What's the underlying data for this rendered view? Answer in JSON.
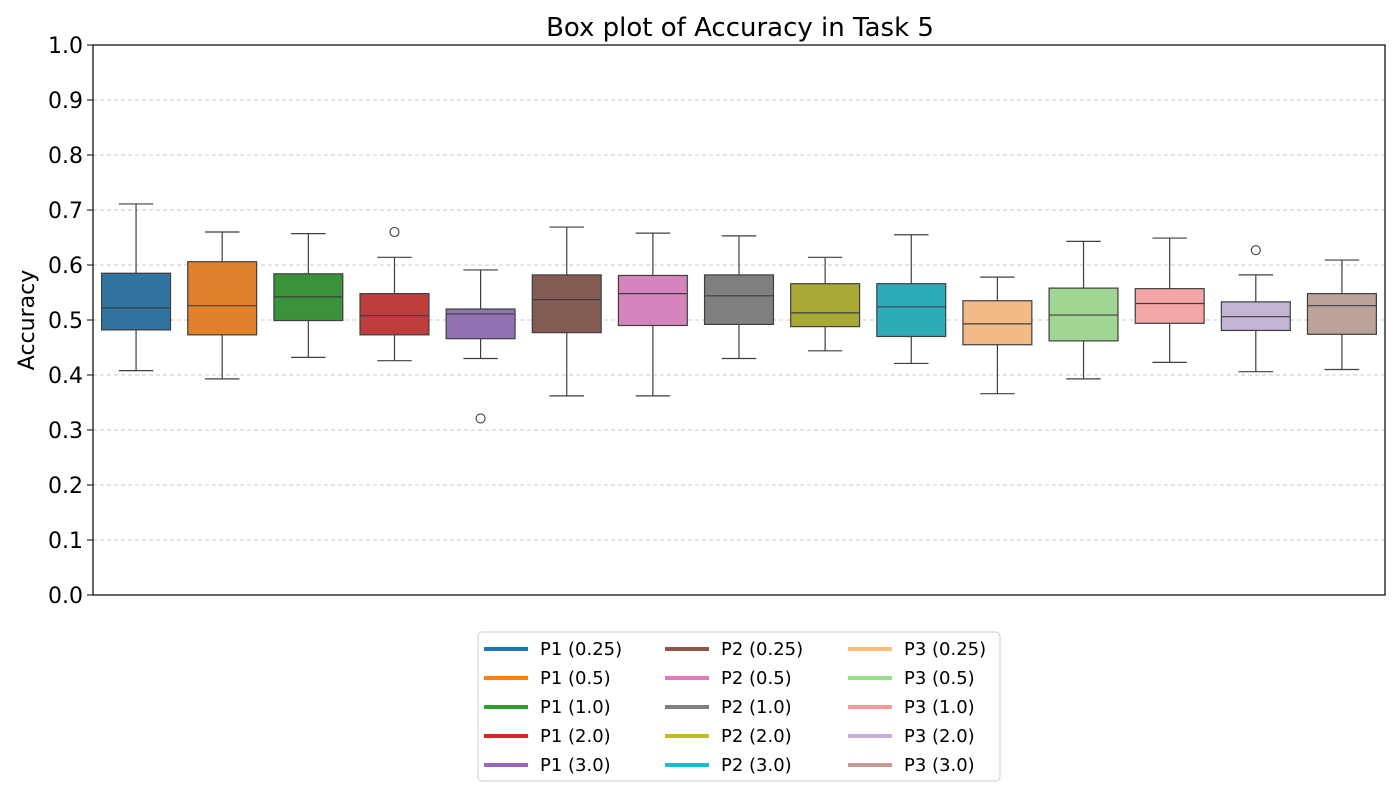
{
  "chart_data": {
    "type": "box",
    "title": "Box plot of Accuracy in Task 5",
    "xlabel": "",
    "ylabel": "Accuracy",
    "ylim": [
      0.0,
      1.0
    ],
    "yticks": [
      "0.0",
      "0.1",
      "0.2",
      "0.3",
      "0.4",
      "0.5",
      "0.6",
      "0.7",
      "0.8",
      "0.9",
      "1.0"
    ],
    "grid": "horizontal dashed",
    "legend_position": "bottom-center",
    "series": [
      {
        "name": "P1 (0.25)",
        "color": "#1f77b4",
        "box_color": "#3274a1",
        "whisker_low": 0.408,
        "q1": 0.482,
        "median": 0.522,
        "q3": 0.585,
        "whisker_high": 0.711,
        "outliers": []
      },
      {
        "name": "P1 (0.5)",
        "color": "#ff7f0e",
        "box_color": "#e1812c",
        "whisker_low": 0.393,
        "q1": 0.473,
        "median": 0.526,
        "q3": 0.606,
        "whisker_high": 0.66,
        "outliers": []
      },
      {
        "name": "P1 (1.0)",
        "color": "#2ca02c",
        "box_color": "#3a923a",
        "whisker_low": 0.432,
        "q1": 0.499,
        "median": 0.542,
        "q3": 0.584,
        "whisker_high": 0.657,
        "outliers": []
      },
      {
        "name": "P1 (2.0)",
        "color": "#d62728",
        "box_color": "#c03d3e",
        "whisker_low": 0.426,
        "q1": 0.473,
        "median": 0.508,
        "q3": 0.548,
        "whisker_high": 0.614,
        "outliers": [
          0.66
        ]
      },
      {
        "name": "P1 (3.0)",
        "color": "#9467bd",
        "box_color": "#9372b2",
        "whisker_low": 0.43,
        "q1": 0.466,
        "median": 0.511,
        "q3": 0.52,
        "whisker_high": 0.591,
        "outliers": [
          0.321
        ]
      },
      {
        "name": "P2 (0.25)",
        "color": "#8c564b",
        "box_color": "#845b53",
        "whisker_low": 0.362,
        "q1": 0.477,
        "median": 0.537,
        "q3": 0.582,
        "whisker_high": 0.669,
        "outliers": []
      },
      {
        "name": "P2 (0.5)",
        "color": "#e377c2",
        "box_color": "#d684bd",
        "whisker_low": 0.362,
        "q1": 0.49,
        "median": 0.548,
        "q3": 0.581,
        "whisker_high": 0.658,
        "outliers": []
      },
      {
        "name": "P2 (1.0)",
        "color": "#7f7f7f",
        "box_color": "#7f7f7f",
        "whisker_low": 0.43,
        "q1": 0.492,
        "median": 0.544,
        "q3": 0.582,
        "whisker_high": 0.653,
        "outliers": []
      },
      {
        "name": "P2 (2.0)",
        "color": "#bcbd22",
        "box_color": "#a9aa35",
        "whisker_low": 0.444,
        "q1": 0.488,
        "median": 0.513,
        "q3": 0.566,
        "whisker_high": 0.614,
        "outliers": []
      },
      {
        "name": "P2 (3.0)",
        "color": "#17becf",
        "box_color": "#2eabb8",
        "whisker_low": 0.421,
        "q1": 0.47,
        "median": 0.524,
        "q3": 0.566,
        "whisker_high": 0.655,
        "outliers": []
      },
      {
        "name": "P3 (0.25)",
        "color": "#ffbb78",
        "box_color": "#f0bb86",
        "whisker_low": 0.366,
        "q1": 0.455,
        "median": 0.493,
        "q3": 0.535,
        "whisker_high": 0.578,
        "outliers": []
      },
      {
        "name": "P3 (0.5)",
        "color": "#98df8a",
        "box_color": "#a0d593",
        "whisker_low": 0.393,
        "q1": 0.462,
        "median": 0.509,
        "q3": 0.558,
        "whisker_high": 0.643,
        "outliers": []
      },
      {
        "name": "P3 (1.0)",
        "color": "#ff9896",
        "box_color": "#f4a6a4",
        "whisker_low": 0.423,
        "q1": 0.494,
        "median": 0.53,
        "q3": 0.557,
        "whisker_high": 0.649,
        "outliers": []
      },
      {
        "name": "P3 (2.0)",
        "color": "#c5b0d5",
        "box_color": "#c3b5d3",
        "whisker_low": 0.406,
        "q1": 0.481,
        "median": 0.506,
        "q3": 0.533,
        "whisker_high": 0.582,
        "outliers": [
          0.627
        ]
      },
      {
        "name": "P3 (3.0)",
        "color": "#c49c94",
        "box_color": "#bba29b",
        "whisker_low": 0.41,
        "q1": 0.474,
        "median": 0.526,
        "q3": 0.548,
        "whisker_high": 0.609,
        "outliers": []
      }
    ]
  }
}
